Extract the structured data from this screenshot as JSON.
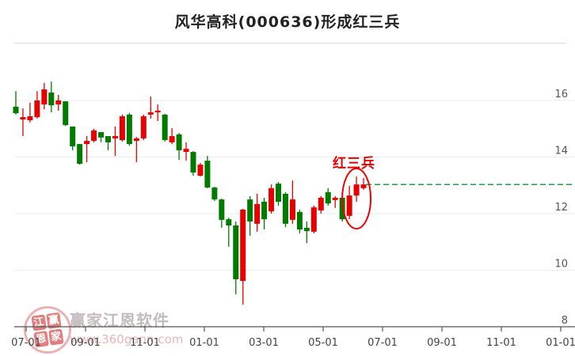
{
  "title": "风华高科(000636)形成红三兵",
  "annotation": {
    "label": "红三兵"
  },
  "watermark": {
    "seal_chars": [
      "江",
      "赢",
      "恩",
      "家"
    ],
    "name": "赢家江恩软件",
    "url": "www.360gann.com"
  },
  "colors": {
    "up": "#e60000",
    "down": "#007b00",
    "reference_line": "#009933",
    "annotation": "#ee0000",
    "gridline": "#ececec",
    "axis": "#555555"
  },
  "chart_data": {
    "type": "candlestick",
    "title": "风华高科(000636)形成红三兵",
    "x_tick_labels": [
      "07-01",
      "09-01",
      "11-01",
      "01-01",
      "03-01",
      "05-01",
      "07-01",
      "09-01",
      "11-01",
      "01-01"
    ],
    "y_ticks": [
      16,
      14,
      12,
      10,
      8
    ],
    "y_tick_labels": [
      "16",
      "14",
      "12",
      "10",
      "8"
    ],
    "ylim": [
      8,
      18
    ],
    "grid": true,
    "reference_line": 13.03,
    "highlight": {
      "label": "红三兵",
      "candle_indices": [
        47,
        48,
        49
      ]
    },
    "candles": [
      {
        "o": 15.78,
        "h": 16.33,
        "l": 15.5,
        "c": 15.55
      },
      {
        "o": 15.33,
        "h": 15.72,
        "l": 14.74,
        "c": 15.41
      },
      {
        "o": 15.3,
        "h": 15.92,
        "l": 15.22,
        "c": 15.44
      },
      {
        "o": 15.41,
        "h": 16.33,
        "l": 15.36,
        "c": 16.0
      },
      {
        "o": 15.86,
        "h": 16.62,
        "l": 15.69,
        "c": 16.39
      },
      {
        "o": 16.28,
        "h": 16.67,
        "l": 15.58,
        "c": 15.83
      },
      {
        "o": 15.86,
        "h": 16.2,
        "l": 15.64,
        "c": 16.0
      },
      {
        "o": 15.97,
        "h": 15.97,
        "l": 15.1,
        "c": 15.13
      },
      {
        "o": 15.08,
        "h": 15.08,
        "l": 14.24,
        "c": 14.38
      },
      {
        "o": 14.46,
        "h": 14.46,
        "l": 13.73,
        "c": 13.76
      },
      {
        "o": 14.46,
        "h": 14.74,
        "l": 13.82,
        "c": 14.57
      },
      {
        "o": 14.57,
        "h": 15.0,
        "l": 14.52,
        "c": 14.94
      },
      {
        "o": 14.88,
        "h": 14.88,
        "l": 14.52,
        "c": 14.69
      },
      {
        "o": 14.74,
        "h": 14.74,
        "l": 14.24,
        "c": 14.52
      },
      {
        "o": 14.66,
        "h": 15.08,
        "l": 14.04,
        "c": 14.74
      },
      {
        "o": 14.6,
        "h": 15.5,
        "l": 14.55,
        "c": 15.44
      },
      {
        "o": 15.5,
        "h": 15.56,
        "l": 14.4,
        "c": 14.46
      },
      {
        "o": 14.57,
        "h": 14.71,
        "l": 13.82,
        "c": 14.66
      },
      {
        "o": 14.66,
        "h": 15.5,
        "l": 14.6,
        "c": 15.44
      },
      {
        "o": 15.5,
        "h": 16.14,
        "l": 15.36,
        "c": 15.58
      },
      {
        "o": 15.58,
        "h": 15.86,
        "l": 15.27,
        "c": 15.64
      },
      {
        "o": 15.5,
        "h": 15.53,
        "l": 14.55,
        "c": 14.6
      },
      {
        "o": 14.52,
        "h": 15.02,
        "l": 14.46,
        "c": 14.74
      },
      {
        "o": 14.8,
        "h": 14.85,
        "l": 13.9,
        "c": 14.24
      },
      {
        "o": 14.18,
        "h": 14.52,
        "l": 13.87,
        "c": 14.29
      },
      {
        "o": 14.18,
        "h": 14.21,
        "l": 13.34,
        "c": 13.45
      },
      {
        "o": 13.34,
        "h": 13.79,
        "l": 13.31,
        "c": 13.73
      },
      {
        "o": 13.87,
        "h": 14.04,
        "l": 12.9,
        "c": 12.92
      },
      {
        "o": 12.92,
        "h": 12.95,
        "l": 12.45,
        "c": 12.5
      },
      {
        "o": 12.5,
        "h": 12.53,
        "l": 11.5,
        "c": 11.78
      },
      {
        "o": 11.8,
        "h": 11.85,
        "l": 10.83,
        "c": 11.58
      },
      {
        "o": 11.58,
        "h": 11.72,
        "l": 9.15,
        "c": 9.68
      },
      {
        "o": 9.62,
        "h": 12.17,
        "l": 8.78,
        "c": 12.14
      },
      {
        "o": 12.5,
        "h": 12.62,
        "l": 11.22,
        "c": 11.72
      },
      {
        "o": 11.64,
        "h": 12.7,
        "l": 11.36,
        "c": 12.34
      },
      {
        "o": 12.42,
        "h": 12.56,
        "l": 11.44,
        "c": 11.8
      },
      {
        "o": 12.08,
        "h": 13.03,
        "l": 12.0,
        "c": 12.9
      },
      {
        "o": 13.06,
        "h": 13.12,
        "l": 12.28,
        "c": 12.42
      },
      {
        "o": 12.7,
        "h": 12.76,
        "l": 11.52,
        "c": 11.64
      },
      {
        "o": 11.78,
        "h": 13.17,
        "l": 11.64,
        "c": 12.5
      },
      {
        "o": 12.06,
        "h": 12.14,
        "l": 11.3,
        "c": 11.44
      },
      {
        "o": 11.5,
        "h": 11.72,
        "l": 10.96,
        "c": 11.38
      },
      {
        "o": 11.36,
        "h": 12.28,
        "l": 11.3,
        "c": 12.22
      },
      {
        "o": 12.11,
        "h": 12.62,
        "l": 12.0,
        "c": 12.56
      },
      {
        "o": 12.76,
        "h": 12.9,
        "l": 12.28,
        "c": 12.36
      },
      {
        "o": 12.48,
        "h": 12.62,
        "l": 12.2,
        "c": 12.56
      },
      {
        "o": 12.56,
        "h": 12.62,
        "l": 11.72,
        "c": 11.8
      },
      {
        "o": 11.92,
        "h": 12.98,
        "l": 11.8,
        "c": 12.64
      },
      {
        "o": 12.64,
        "h": 13.31,
        "l": 12.42,
        "c": 13.03
      },
      {
        "o": 12.9,
        "h": 13.26,
        "l": 12.84,
        "c": 13.03
      }
    ]
  }
}
